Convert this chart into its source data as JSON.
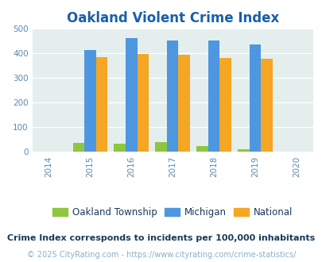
{
  "title": "Oakland Violent Crime Index",
  "years": [
    2015,
    2016,
    2017,
    2018,
    2019
  ],
  "x_ticks": [
    2014,
    2015,
    2016,
    2017,
    2018,
    2019,
    2020
  ],
  "oakland": [
    36,
    33,
    40,
    24,
    10
  ],
  "michigan": [
    415,
    462,
    451,
    451,
    438
  ],
  "national": [
    384,
    398,
    394,
    381,
    380
  ],
  "colors": {
    "oakland": "#8dc63f",
    "michigan": "#4d97e0",
    "national": "#f5a623",
    "background": "#e4eeed",
    "title": "#1a5fa8",
    "grid": "#ffffff",
    "footnote1": "#1a3a5a",
    "footnote2": "#8ab0c8"
  },
  "ylim": [
    0,
    500
  ],
  "yticks": [
    0,
    100,
    200,
    300,
    400,
    500
  ],
  "bar_width": 0.28,
  "legend_labels": [
    "Oakland Township",
    "Michigan",
    "National"
  ],
  "footnote1": "Crime Index corresponds to incidents per 100,000 inhabitants",
  "footnote2": "© 2025 CityRating.com - https://www.cityrating.com/crime-statistics/",
  "fig_bg": "#ffffff",
  "tick_color": "#5a8ab0",
  "tick_fontsize": 7.5,
  "footnote1_fontsize": 8.0,
  "footnote2_fontsize": 7.0,
  "legend_fontsize": 8.5,
  "title_fontsize": 12
}
